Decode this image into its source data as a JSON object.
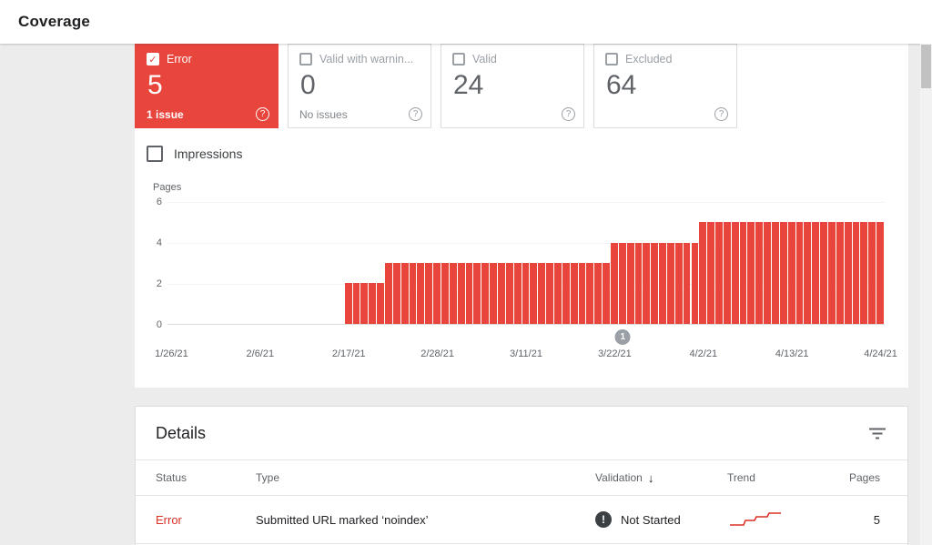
{
  "header": {
    "title": "Coverage"
  },
  "summary_cards": [
    {
      "id": "error",
      "label": "Error",
      "value": "5",
      "subtitle": "1 issue",
      "checked": true,
      "selected": true
    },
    {
      "id": "valid-with-warnings",
      "label": "Valid with warnin...",
      "value": "0",
      "subtitle": "No issues",
      "checked": false,
      "selected": false
    },
    {
      "id": "valid",
      "label": "Valid",
      "value": "24",
      "subtitle": "",
      "checked": false,
      "selected": false
    },
    {
      "id": "excluded",
      "label": "Excluded",
      "value": "64",
      "subtitle": "",
      "checked": false,
      "selected": false
    }
  ],
  "chart": {
    "impressions_label": "Impressions",
    "ylabel": "Pages"
  },
  "chart_data": {
    "type": "bar",
    "title": "Error pages over time",
    "ylabel": "Pages",
    "ylim": [
      0,
      6
    ],
    "yticks": [
      6,
      4,
      2,
      0
    ],
    "x_tick_labels": [
      "1/26/21",
      "2/6/21",
      "2/17/21",
      "2/28/21",
      "3/11/21",
      "3/22/21",
      "4/2/21",
      "4/13/21",
      "4/24/21"
    ],
    "num_day_slots": 89,
    "tick_every_slots": 11,
    "bar_color": "#e8453c",
    "grid": true,
    "segments": [
      {
        "from": "2/17/21",
        "to": "2/21/21",
        "start_slot": 22,
        "end_slot": 26,
        "value": 2
      },
      {
        "from": "2/22/21",
        "to": "3/21/21",
        "start_slot": 27,
        "end_slot": 54,
        "value": 3
      },
      {
        "from": "3/22/21",
        "to": "4/1/21",
        "start_slot": 55,
        "end_slot": 65,
        "value": 4
      },
      {
        "from": "4/2/21",
        "to": "4/24/21",
        "start_slot": 66,
        "end_slot": 88,
        "value": 5
      }
    ],
    "timeline_marker": {
      "label": "1",
      "slot": 56
    }
  },
  "details": {
    "title": "Details",
    "columns": [
      "Status",
      "Type",
      "Validation",
      "Trend",
      "Pages"
    ],
    "sort_column": "Validation",
    "sort_direction": "↓",
    "rows": [
      {
        "status": "Error",
        "type": "Submitted URL marked ‘noindex’",
        "validation": "Not Started",
        "trend": "rising-steps",
        "pages": "5"
      }
    ]
  },
  "colors": {
    "error_red": "#e8453c",
    "error_text_red": "#d93025",
    "text_dark": "#202124",
    "text_gray": "#5f6368",
    "border_gray": "#dadce0",
    "marker_gray": "#9aa0a6"
  }
}
